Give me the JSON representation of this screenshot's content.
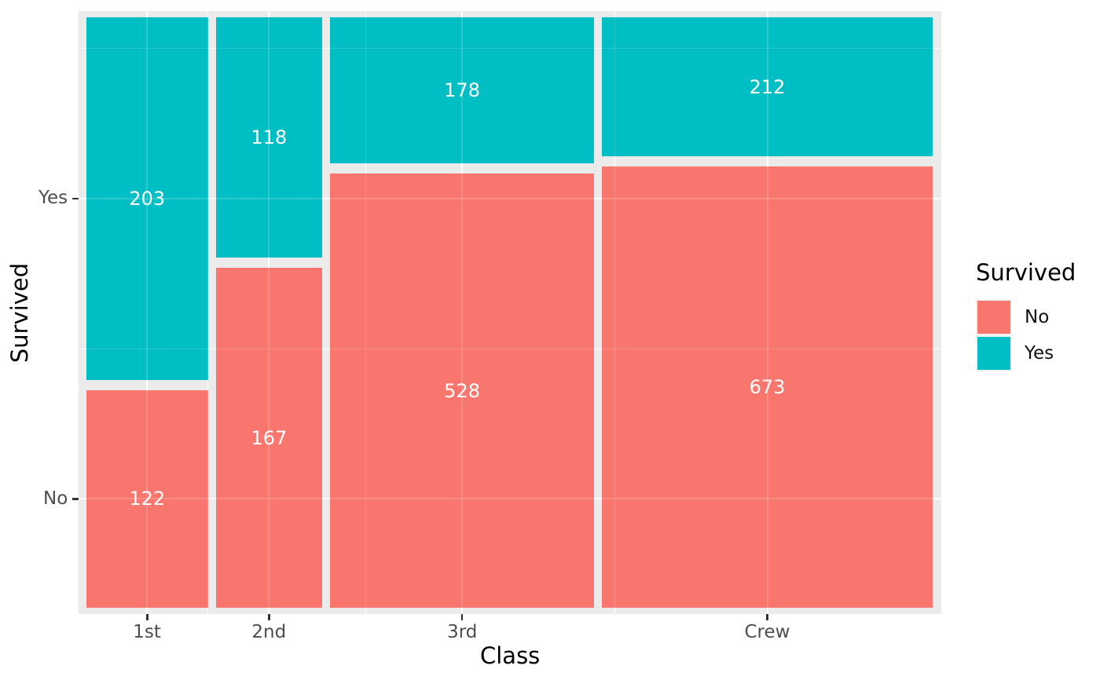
{
  "chart_data": {
    "type": "mosaic",
    "xlabel": "Class",
    "ylabel": "Survived",
    "categories": [
      "1st",
      "2nd",
      "3rd",
      "Crew"
    ],
    "series": [
      {
        "name": "No",
        "values": [
          122,
          167,
          528,
          673
        ]
      },
      {
        "name": "Yes",
        "values": [
          203,
          118,
          178,
          212
        ]
      }
    ],
    "cell_labels": {
      "No": [
        "122",
        "167",
        "528",
        "673"
      ],
      "Yes": [
        "203",
        "118",
        "178",
        "212"
      ]
    },
    "y_tick_labels": [
      "Yes",
      "No"
    ],
    "legend": {
      "title": "Survived",
      "position": "right",
      "entries": [
        {
          "label": "No",
          "color": "#F8766D"
        },
        {
          "label": "Yes",
          "color": "#00BFC4"
        }
      ]
    },
    "colors": {
      "No": "#F8766D",
      "Yes": "#00BFC4",
      "panel_bg": "#EBEBEB",
      "grid": "#FFFFFF",
      "tick_text": "#4D4D4D",
      "axis_title_text": "#000000",
      "bar_label_text": "#FFFFFF"
    },
    "grid_on": true
  }
}
